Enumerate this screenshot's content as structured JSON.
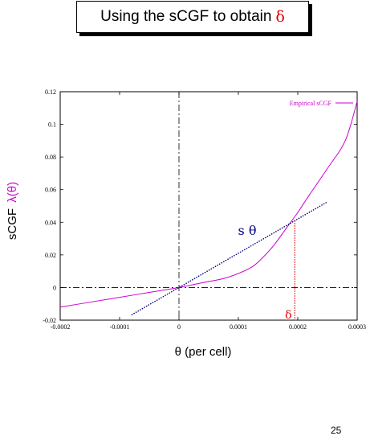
{
  "slide": {
    "title_text": "Using the sCGF to obtain",
    "title_symbol": "δ",
    "page_number": "25"
  },
  "chart_data": {
    "type": "line",
    "xlabel": "θ (per cell)",
    "ylabel_prefix": "sCGF",
    "ylabel_symbol": "λ(θ)",
    "xlim": [
      -0.0002,
      0.0003
    ],
    "ylim": [
      -0.02,
      0.12
    ],
    "x_ticks": [
      -0.0002,
      -0.0001,
      0,
      0.0001,
      0.0002,
      0.0003
    ],
    "x_tick_labels": [
      "-0.0002",
      "-0.0001",
      "0",
      "0.0001",
      "0.0002",
      "0.0003"
    ],
    "y_ticks": [
      -0.02,
      0,
      0.02,
      0.04,
      0.06,
      0.08,
      0.1,
      0.12
    ],
    "y_tick_labels": [
      "-0.02",
      "0",
      "0.02",
      "0.04",
      "0.06",
      "0.08",
      "0.1",
      "0.12"
    ],
    "legend_position": "top-right",
    "series": [
      {
        "name": "Empirical sCGF",
        "color": "#cc00cc",
        "x": [
          -0.0002,
          -0.00015,
          -0.0001,
          -5e-05,
          0,
          4e-05,
          8e-05,
          0.00012,
          0.00014,
          0.00016,
          0.00018,
          0.0002,
          0.00022,
          0.00025,
          0.00028,
          0.0003
        ],
        "y": [
          -0.012,
          -0.009,
          -0.006,
          -0.003,
          0,
          0.003,
          0.006,
          0.012,
          0.018,
          0.026,
          0.036,
          0.046,
          0.057,
          0.073,
          0.09,
          0.114
        ]
      },
      {
        "name": "",
        "color": "#000080",
        "x": [
          -8e-05,
          0.00025
        ],
        "y": [
          -0.0168,
          0.0525
        ]
      }
    ],
    "annotations": {
      "tangent_label": "s θ",
      "delta_label": "δ",
      "delta_x": 0.000195,
      "delta_y": 0.041,
      "delta_color": "#e00000",
      "tangent_color": "#000080"
    }
  }
}
